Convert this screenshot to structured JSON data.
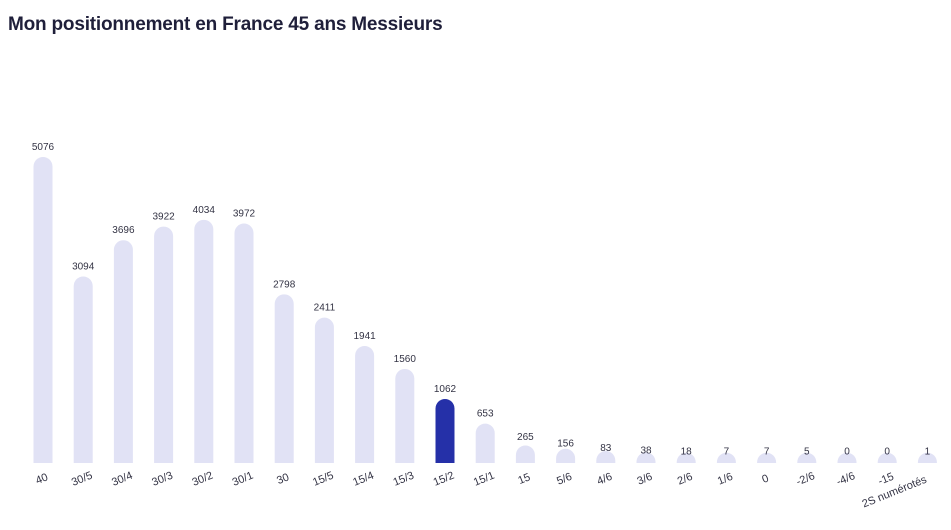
{
  "chart_data": {
    "type": "bar",
    "title": "Mon positionnement en France 45 ans Messieurs",
    "categories": [
      "40",
      "30/5",
      "30/4",
      "30/3",
      "30/2",
      "30/1",
      "30",
      "15/5",
      "15/4",
      "15/3",
      "15/2",
      "15/1",
      "15",
      "5/6",
      "4/6",
      "3/6",
      "2/6",
      "1/6",
      "0",
      "-2/6",
      "-4/6",
      "-15",
      "2S numérotés"
    ],
    "values": [
      5076,
      3094,
      3696,
      3922,
      4034,
      3972,
      2798,
      2411,
      1941,
      1560,
      1062,
      653,
      265,
      156,
      83,
      38,
      18,
      7,
      7,
      5,
      0,
      0,
      1
    ],
    "ylim": [
      0,
      5076
    ],
    "highlight_category": "15/2",
    "colors": {
      "bar": "#e1e2f5",
      "highlight": "#2530a8"
    },
    "grid": false,
    "legend": "none"
  }
}
